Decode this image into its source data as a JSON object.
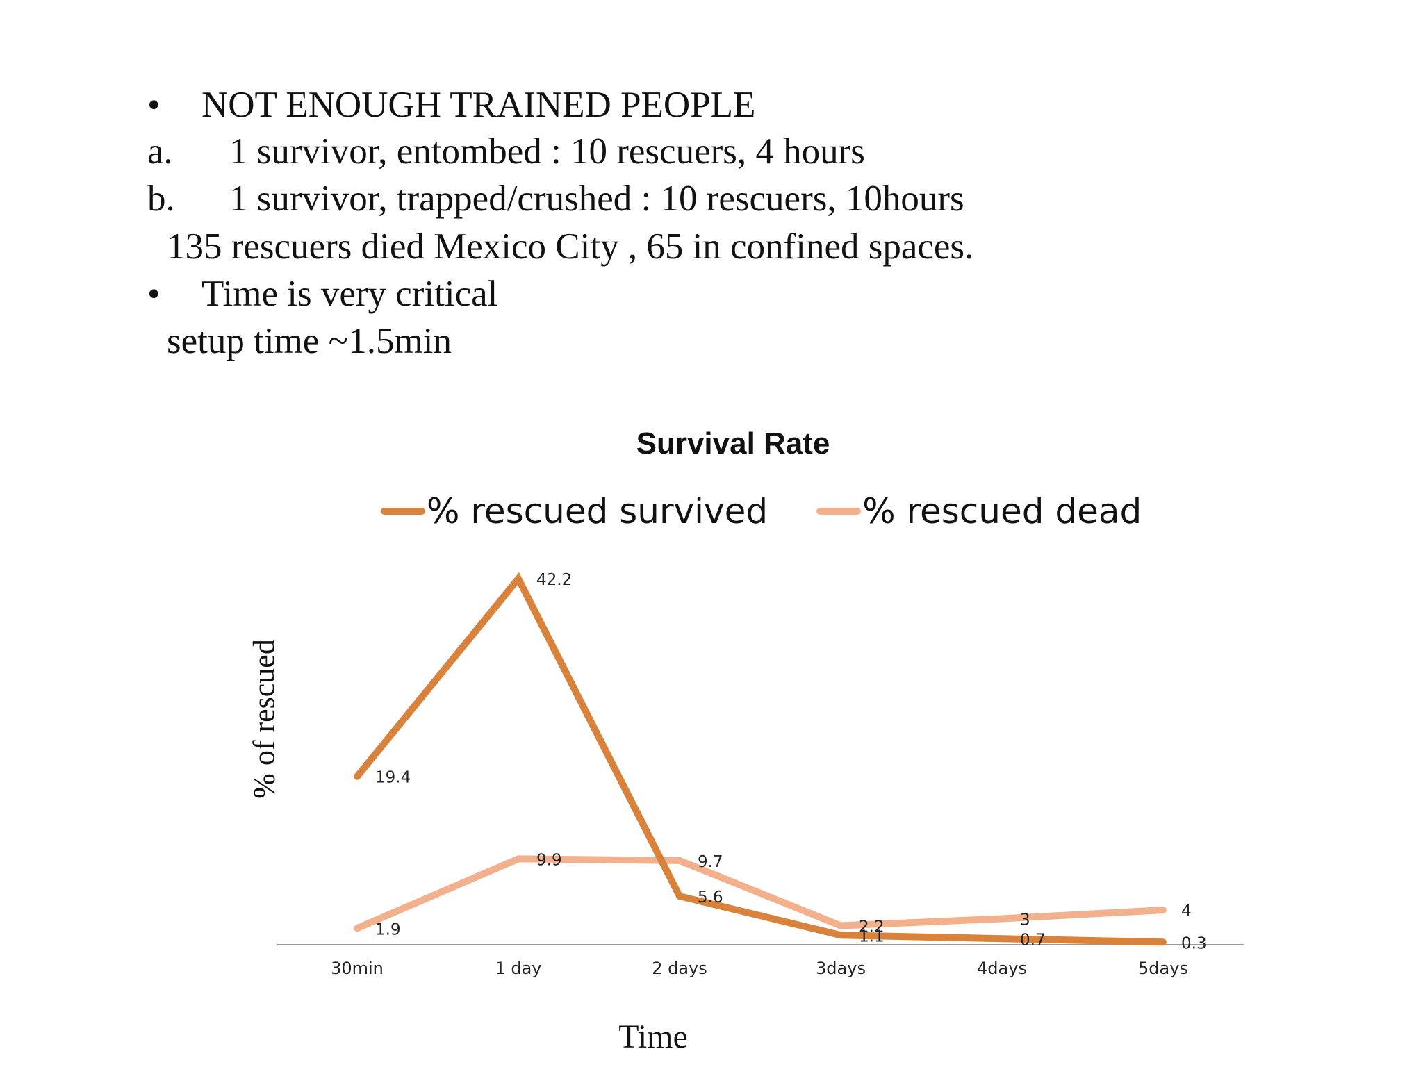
{
  "bullets": [
    {
      "marker": "•",
      "text": "NOT ENOUGH TRAINED PEOPLE"
    },
    {
      "marker": "a.",
      "text": "1 survivor, entombed : 10 rescuers, 4 hours"
    },
    {
      "marker": "b.",
      "text": "1 survivor, trapped/crushed : 10 rescuers, 10hours"
    },
    {
      "marker": "",
      "text": "135 rescuers died Mexico City , 65 in confined spaces."
    },
    {
      "marker": "•",
      "text": "Time is very critical"
    },
    {
      "marker": "",
      "text": "setup time ~1.5min"
    }
  ],
  "chart_data": {
    "type": "line",
    "title": "Survival Rate",
    "xlabel": "Time",
    "ylabel": "% of rescued",
    "categories": [
      "30min",
      "1 day",
      "2 days",
      "3days",
      "4days",
      "5days"
    ],
    "series": [
      {
        "name": "% rescued survived",
        "color": "#d9823c",
        "values": [
          19.4,
          42.2,
          5.6,
          1.1,
          0.7,
          0.3
        ],
        "labels": [
          "19.4",
          "42.2",
          "5.6",
          "1.1",
          "0.7",
          "0.3"
        ]
      },
      {
        "name": "% rescued dead",
        "color": "#f2b08c",
        "values": [
          1.9,
          9.9,
          9.7,
          2.2,
          3,
          4
        ],
        "labels": [
          "1.9",
          "9.9",
          "9.7",
          "2.2",
          "3",
          "4"
        ]
      }
    ],
    "ylim": [
      0,
      45
    ],
    "grid": false,
    "legend": "top"
  }
}
